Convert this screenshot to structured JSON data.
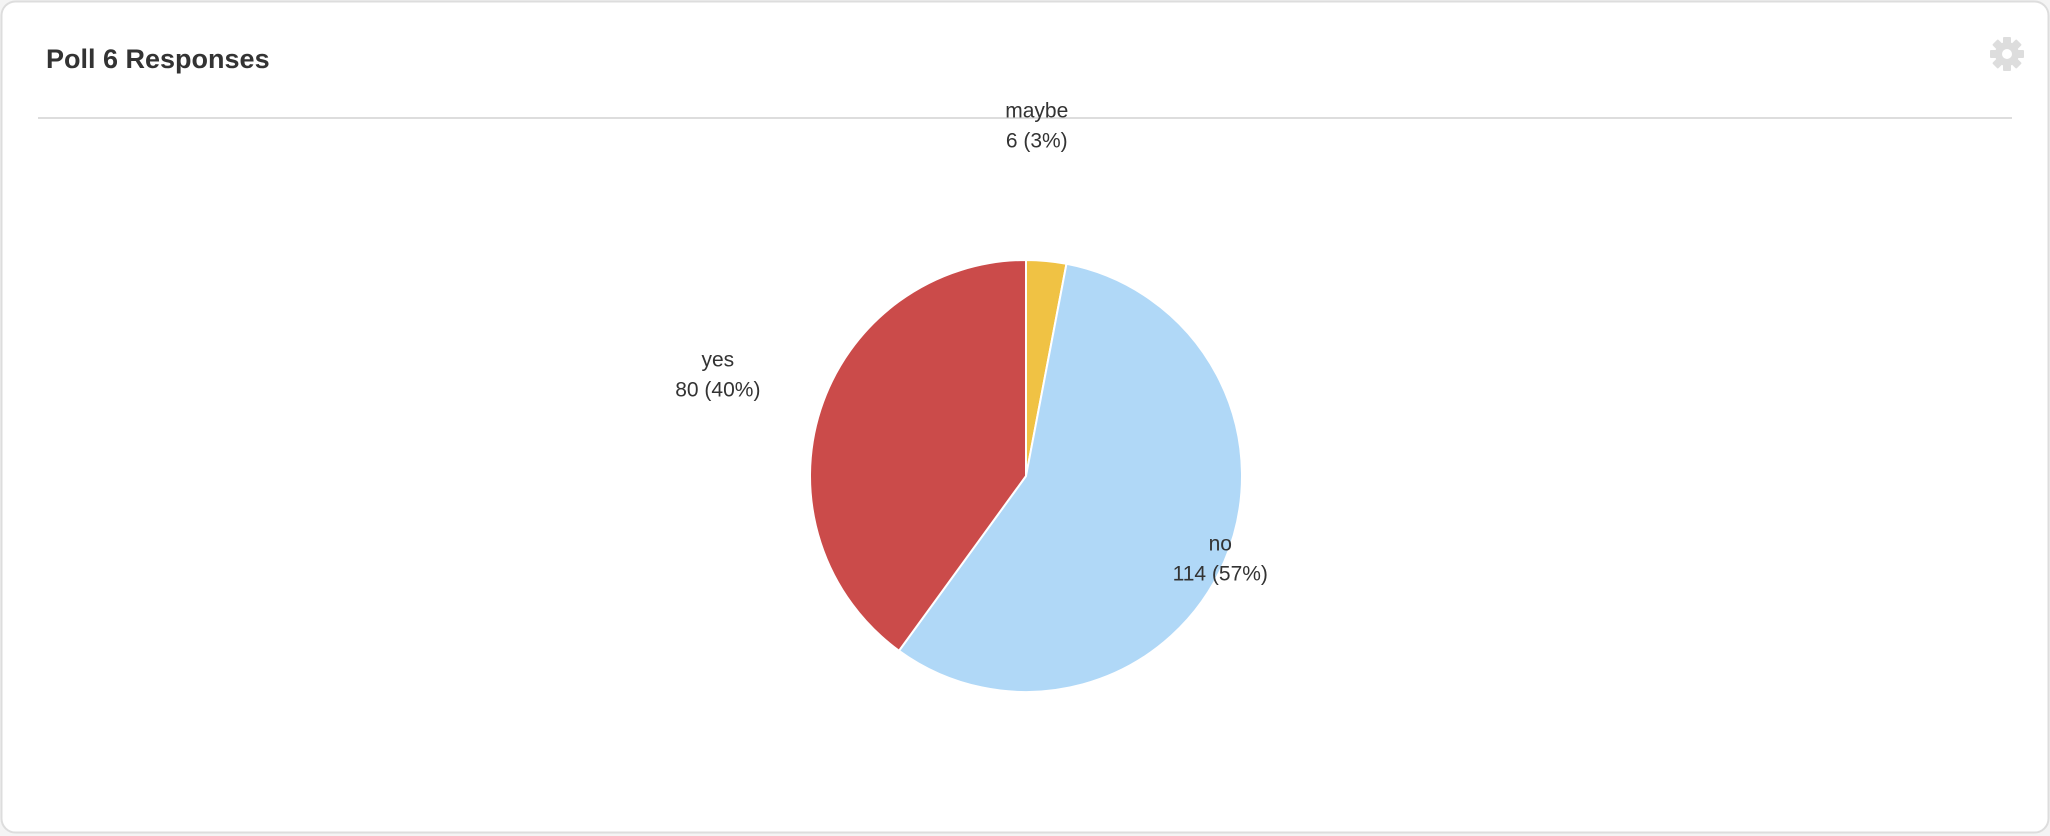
{
  "chart_data": {
    "type": "pie",
    "title": "Poll 6 Responses",
    "categories": [
      "maybe",
      "no",
      "yes"
    ],
    "values": [
      6,
      114,
      80
    ],
    "value_labels": [
      "6 (3%)",
      "114 (57%)",
      "80 (40%)"
    ],
    "colors": [
      "#f0c244",
      "#b0d8f7",
      "#cb4b4a"
    ]
  }
}
